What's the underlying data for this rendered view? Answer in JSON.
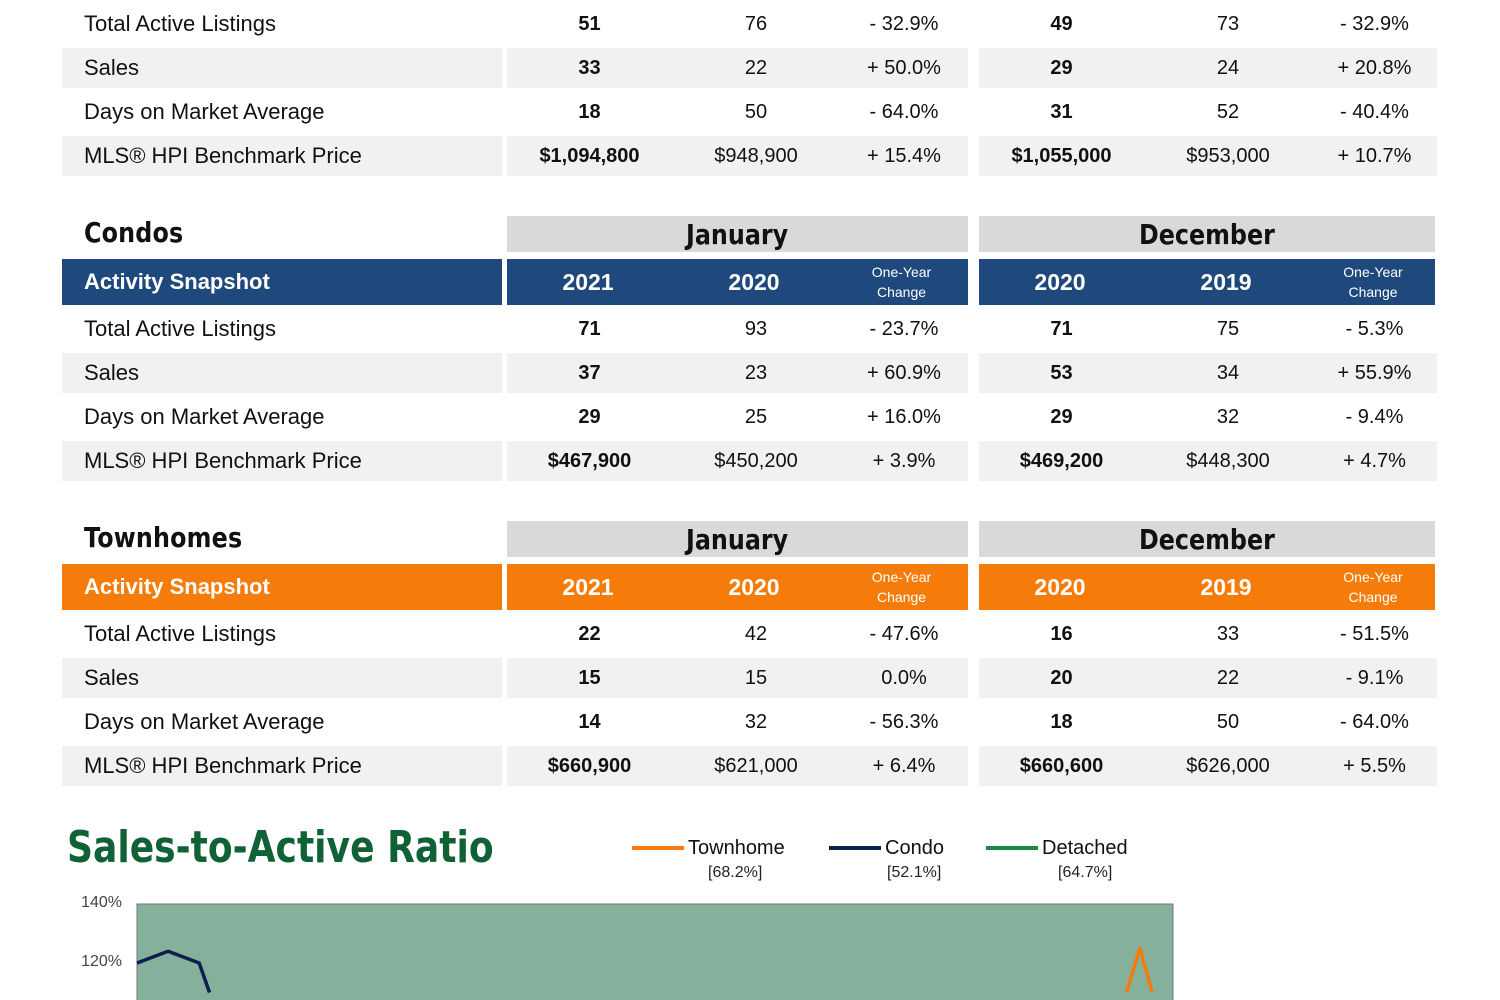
{
  "detached_top": {
    "rows": [
      {
        "label": "Total Active Listings",
        "jan_2021": "51",
        "jan_2020": "76",
        "jan_change": "- 32.9%",
        "dec_2020": "49",
        "dec_2019": "73",
        "dec_change": "- 32.9%"
      },
      {
        "label": "Sales",
        "jan_2021": "33",
        "jan_2020": "22",
        "jan_change": "+ 50.0%",
        "dec_2020": "29",
        "dec_2019": "24",
        "dec_change": "+ 20.8%"
      },
      {
        "label": "Days on Market Average",
        "jan_2021": "18",
        "jan_2020": "50",
        "jan_change": "- 64.0%",
        "dec_2020": "31",
        "dec_2019": "52",
        "dec_change": "- 40.4%"
      },
      {
        "label": "MLS® HPI Benchmark Price",
        "jan_2021": "$1,094,800",
        "jan_2020": "$948,900",
        "jan_change": "+ 15.4%",
        "dec_2020": "$1,055,000",
        "dec_2019": "$953,000",
        "dec_change": "+ 10.7%"
      }
    ]
  },
  "condos": {
    "title": "Condos",
    "month_a": "January",
    "month_b": "December",
    "snapshot_label": "Activity Snapshot",
    "year_a1": "2021",
    "year_a2": "2020",
    "year_b1": "2020",
    "year_b2": "2019",
    "change_line1": "One-Year",
    "change_line2": "Change",
    "rows": [
      {
        "label": "Total Active Listings",
        "jan_2021": "71",
        "jan_2020": "93",
        "jan_change": "- 23.7%",
        "dec_2020": "71",
        "dec_2019": "75",
        "dec_change": "- 5.3%"
      },
      {
        "label": "Sales",
        "jan_2021": "37",
        "jan_2020": "23",
        "jan_change": "+ 60.9%",
        "dec_2020": "53",
        "dec_2019": "34",
        "dec_change": "+ 55.9%"
      },
      {
        "label": "Days on Market Average",
        "jan_2021": "29",
        "jan_2020": "25",
        "jan_change": "+ 16.0%",
        "dec_2020": "29",
        "dec_2019": "32",
        "dec_change": "- 9.4%"
      },
      {
        "label": "MLS® HPI Benchmark Price",
        "jan_2021": "$467,900",
        "jan_2020": "$450,200",
        "jan_change": "+ 3.9%",
        "dec_2020": "$469,200",
        "dec_2019": "$448,300",
        "dec_change": "+ 4.7%"
      }
    ]
  },
  "townhomes": {
    "title": "Townhomes",
    "month_a": "January",
    "month_b": "December",
    "snapshot_label": "Activity Snapshot",
    "year_a1": "2021",
    "year_a2": "2020",
    "year_b1": "2020",
    "year_b2": "2019",
    "change_line1": "One-Year",
    "change_line2": "Change",
    "rows": [
      {
        "label": "Total Active Listings",
        "jan_2021": "22",
        "jan_2020": "42",
        "jan_change": "- 47.6%",
        "dec_2020": "16",
        "dec_2019": "33",
        "dec_change": "- 51.5%"
      },
      {
        "label": "Sales",
        "jan_2021": "15",
        "jan_2020": "15",
        "jan_change": "0.0%",
        "dec_2020": "20",
        "dec_2019": "22",
        "dec_change": "- 9.1%"
      },
      {
        "label": "Days on Market Average",
        "jan_2021": "14",
        "jan_2020": "32",
        "jan_change": "- 56.3%",
        "dec_2020": "18",
        "dec_2019": "50",
        "dec_change": "- 64.0%"
      },
      {
        "label": "MLS® HPI Benchmark Price",
        "jan_2021": "$660,900",
        "jan_2020": "$621,000",
        "jan_change": "+ 6.4%",
        "dec_2020": "$660,600",
        "dec_2019": "$626,000",
        "dec_change": "+ 5.5%"
      }
    ]
  },
  "colors": {
    "navy": "#1f497d",
    "orange": "#f57c0a",
    "green_title": "#116136",
    "condo_line": "#0d1f4f",
    "townhome_line": "#f57c0a",
    "detached_line": "#1a8a4a",
    "plot_bg": "#84b09c"
  },
  "chart_data": {
    "type": "line",
    "title": "Sales-to-Active Ratio",
    "ytick_labels": [
      "140%",
      "120%"
    ],
    "ylim_visible": [
      110,
      140
    ],
    "series": [
      {
        "name": "Townhome",
        "current": "[68.2%]",
        "color": "#f57c0a",
        "points": [
          [
            0.955,
            110
          ],
          [
            0.968,
            125
          ],
          [
            0.98,
            110
          ]
        ]
      },
      {
        "name": "Condo",
        "current": "[52.1%]",
        "color": "#0d1f4f",
        "points": [
          [
            0,
            120
          ],
          [
            0.03,
            124
          ],
          [
            0.06,
            120
          ],
          [
            0.07,
            110
          ]
        ]
      },
      {
        "name": "Detached",
        "current": "[64.7%]",
        "color": "#1a8a4a",
        "points": []
      }
    ]
  }
}
